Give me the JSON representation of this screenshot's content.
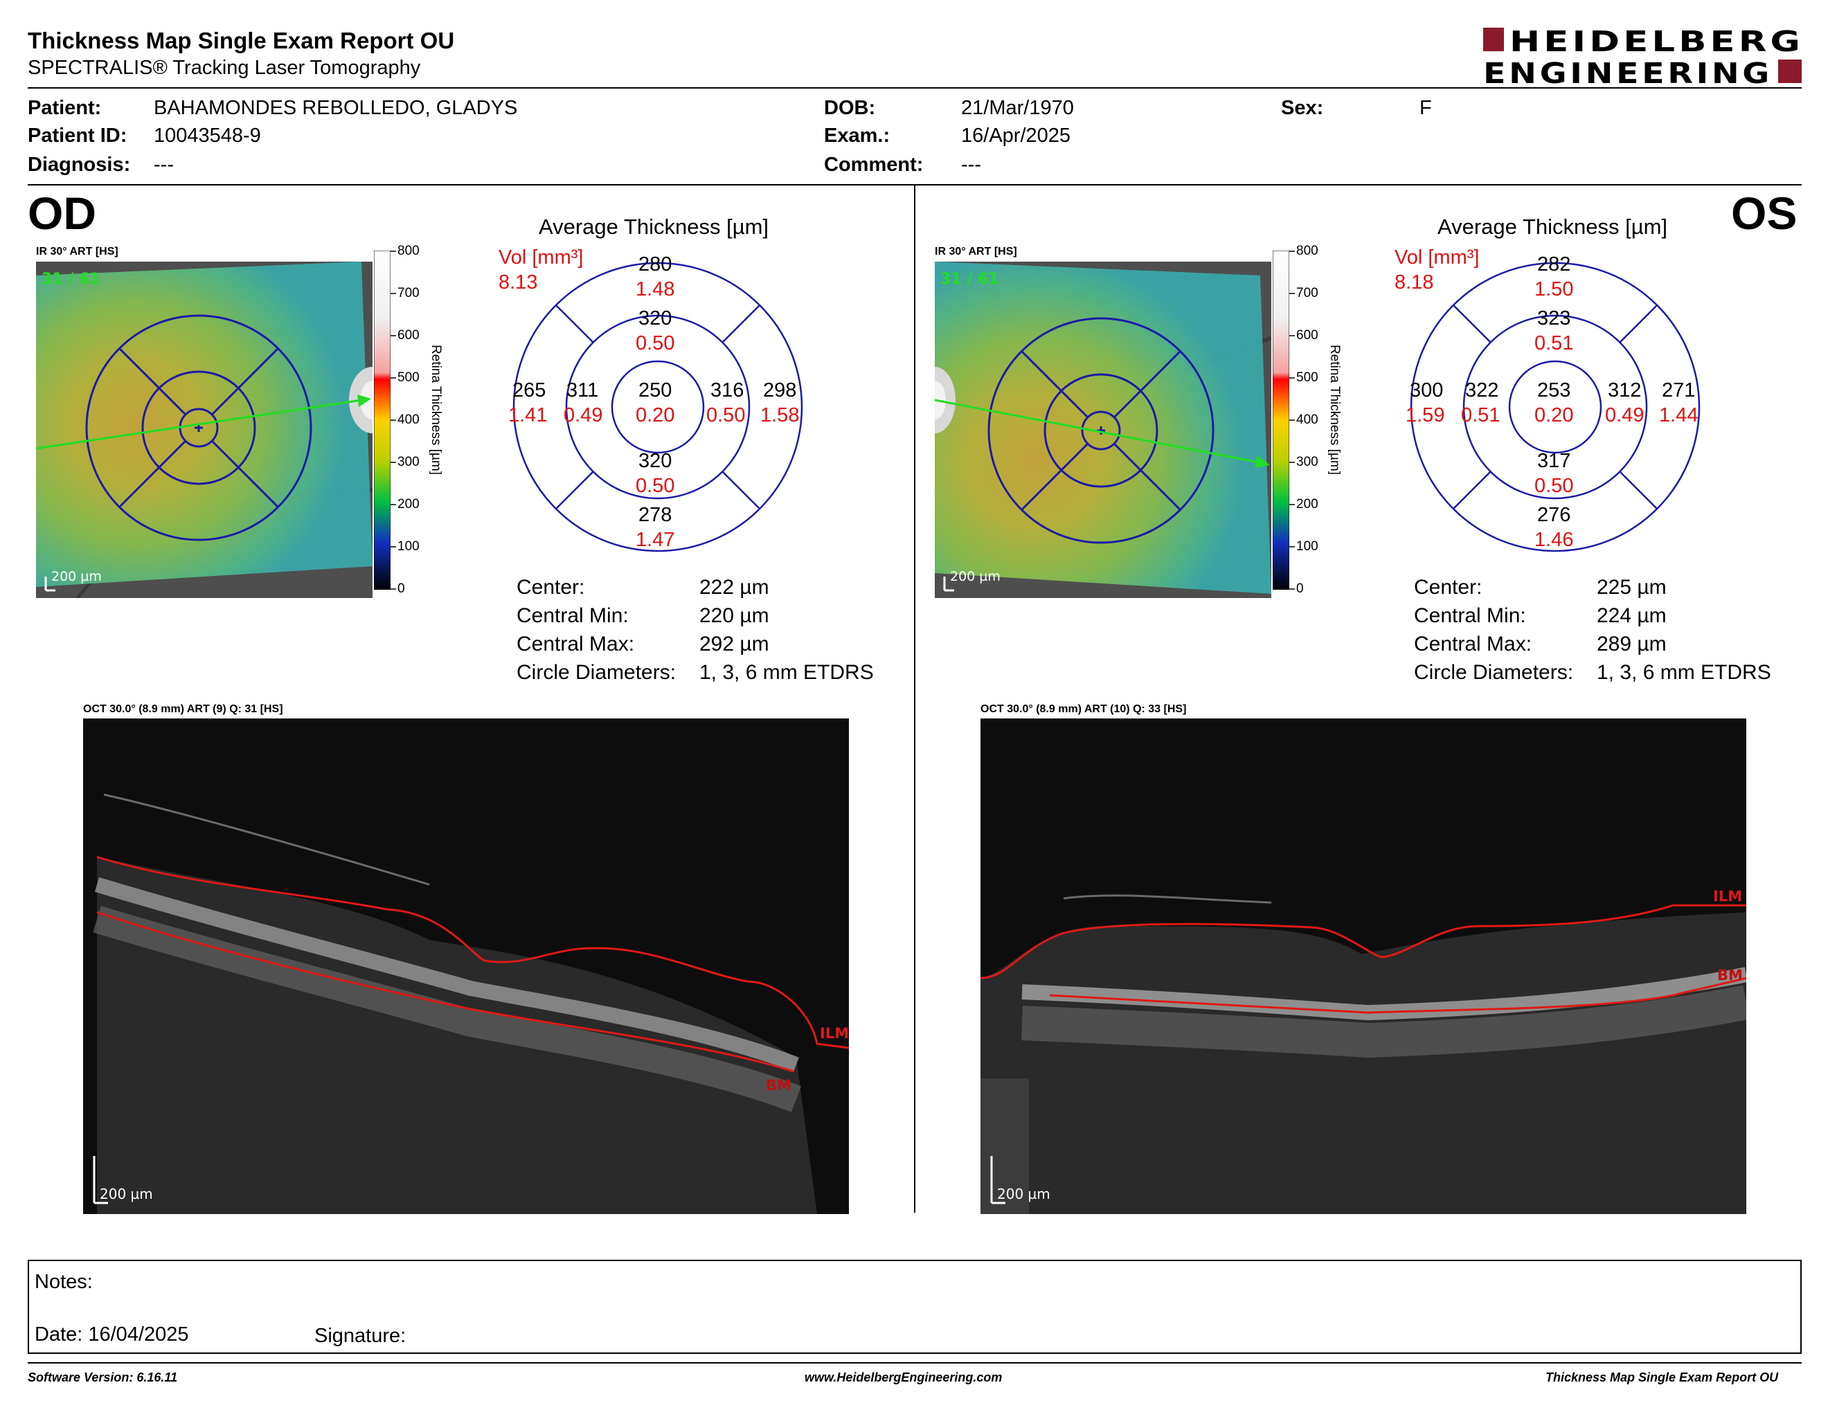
{
  "header": {
    "title": "Thickness Map Single Exam Report OU",
    "subtitle": "SPECTRALIS® Tracking Laser Tomography",
    "logo_line1": "HEIDELBERG",
    "logo_line2": "ENGINEERING",
    "logo_color": "#8b1a2b"
  },
  "patient": {
    "patient_label": "Patient:",
    "patient_value": "BAHAMONDES REBOLLEDO, GLADYS",
    "id_label": "Patient ID:",
    "id_value": "10043548-9",
    "diagnosis_label": "Diagnosis:",
    "diagnosis_value": "---",
    "dob_label": "DOB:",
    "dob_value": "21/Mar/1970",
    "exam_label": "Exam.:",
    "exam_value": "16/Apr/2025",
    "comment_label": "Comment:",
    "comment_value": "---",
    "sex_label": "Sex:",
    "sex_value": "F"
  },
  "scale": {
    "ticks": [
      "800",
      "700",
      "600",
      "500",
      "400",
      "300",
      "200",
      "100",
      "0"
    ],
    "title": "Retina  Thickness [µm]"
  },
  "od": {
    "eye": "OD",
    "fundus_caption": "IR 30° ART [HS]",
    "fundus_counter": "31 / 61",
    "fundus_scalebar": "200 µm",
    "chart_title": "Average Thickness [µm]",
    "vol_label": "Vol [mm³]",
    "vol_total": "8.13",
    "sectors": {
      "outer_sup": {
        "t": "280",
        "v": "1.48"
      },
      "inner_sup": {
        "t": "320",
        "v": "0.50"
      },
      "outer_left": {
        "t": "265",
        "v": "1.41"
      },
      "inner_left": {
        "t": "311",
        "v": "0.49"
      },
      "center": {
        "t": "250",
        "v": "0.20"
      },
      "inner_right": {
        "t": "316",
        "v": "0.50"
      },
      "outer_right": {
        "t": "298",
        "v": "1.58"
      },
      "inner_inf": {
        "t": "320",
        "v": "0.50"
      },
      "outer_inf": {
        "t": "278",
        "v": "1.47"
      }
    },
    "stats": [
      {
        "label": "Center:",
        "value": "222 µm"
      },
      {
        "label": "Central Min:",
        "value": "220 µm"
      },
      {
        "label": "Central Max:",
        "value": "292 µm"
      },
      {
        "label": "Circle Diameters:",
        "value": "1, 3, 6 mm ETDRS"
      }
    ],
    "oct_caption": "OCT 30.0° (8.9 mm) ART (9) Q: 31 [HS]",
    "oct_scalebar": "200 µm",
    "ilm_label": "ILM",
    "bm_label": "BM"
  },
  "os": {
    "eye": "OS",
    "fundus_caption": "IR 30° ART [HS]",
    "fundus_counter": "31 / 61",
    "fundus_scalebar": "200 µm",
    "chart_title": "Average Thickness [µm]",
    "vol_label": "Vol [mm³]",
    "vol_total": "8.18",
    "sectors": {
      "outer_sup": {
        "t": "282",
        "v": "1.50"
      },
      "inner_sup": {
        "t": "323",
        "v": "0.51"
      },
      "outer_left": {
        "t": "300",
        "v": "1.59"
      },
      "inner_left": {
        "t": "322",
        "v": "0.51"
      },
      "center": {
        "t": "253",
        "v": "0.20"
      },
      "inner_right": {
        "t": "312",
        "v": "0.49"
      },
      "outer_right": {
        "t": "271",
        "v": "1.44"
      },
      "inner_inf": {
        "t": "317",
        "v": "0.50"
      },
      "outer_inf": {
        "t": "276",
        "v": "1.46"
      }
    },
    "stats": [
      {
        "label": "Center:",
        "value": "225 µm"
      },
      {
        "label": "Central Min:",
        "value": "224 µm"
      },
      {
        "label": "Central Max:",
        "value": "289 µm"
      },
      {
        "label": "Circle Diameters:",
        "value": "1, 3, 6 mm ETDRS"
      }
    ],
    "oct_caption": "OCT 30.0° (8.9 mm) ART (10) Q: 33 [HS]",
    "oct_scalebar": "200 µm",
    "ilm_label": "ILM",
    "bm_label": "BM"
  },
  "notes": {
    "notes_label": "Notes:",
    "date_label": "Date: 16/04/2025",
    "signature_label": "Signature:"
  },
  "footer": {
    "software": "Software Version: 6.16.11",
    "website": "www.HeidelbergEngineering.com",
    "report_name": "Thickness Map Single Exam Report OU"
  },
  "colors": {
    "grid_blue": "#1a1aa8",
    "volume_red": "#e01010",
    "green_arrow": "#22dd22",
    "segmentation_red": "#e01818"
  }
}
